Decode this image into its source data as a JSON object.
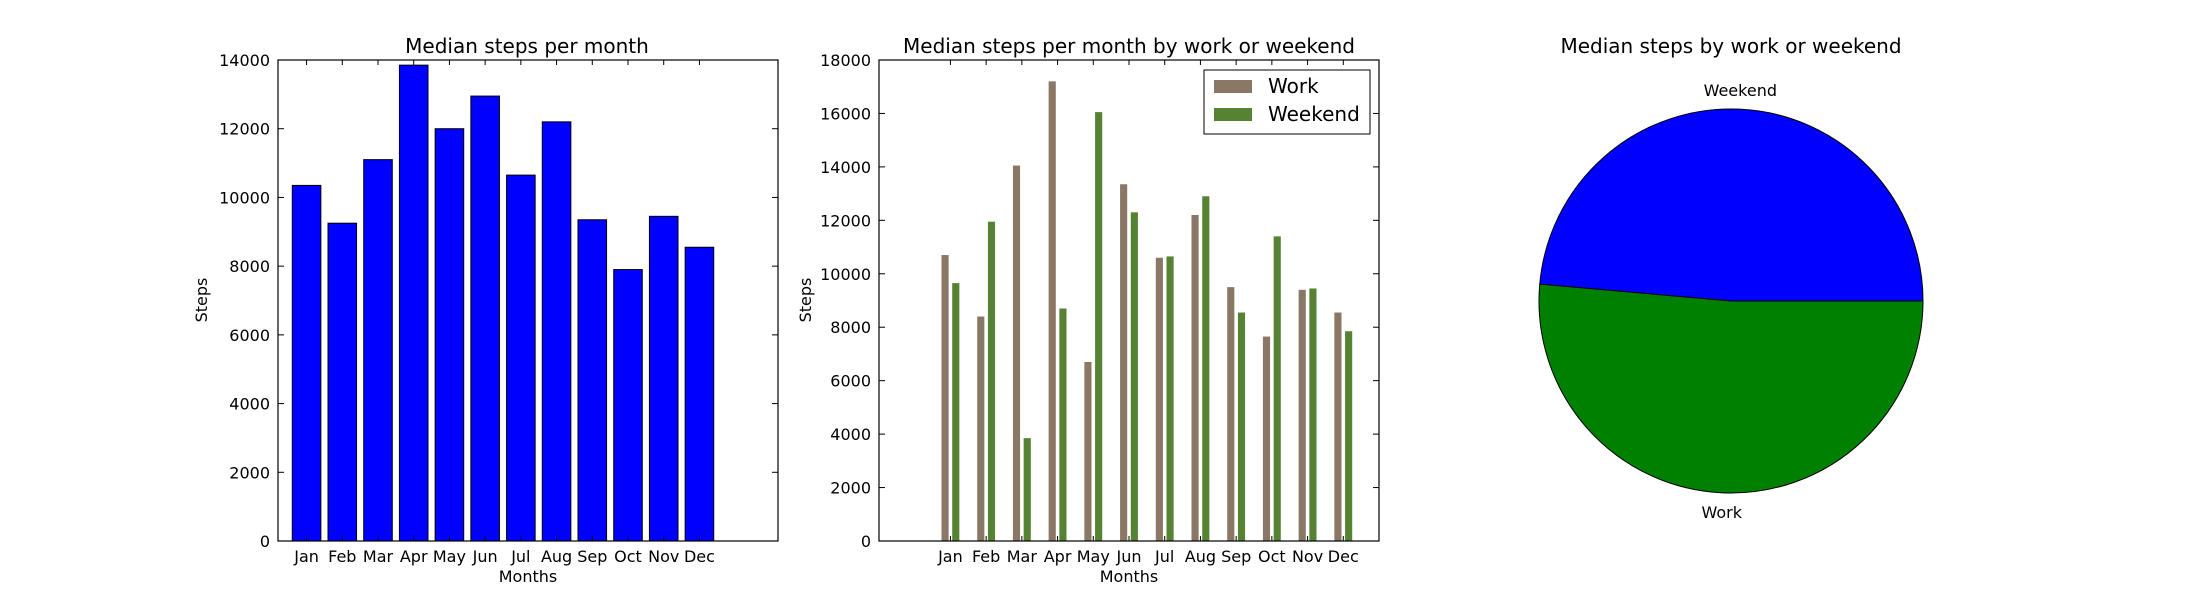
{
  "chart_data": [
    {
      "type": "bar",
      "title": "Median steps per month",
      "xlabel": "Months",
      "ylabel": "Steps",
      "categories": [
        "Jan",
        "Feb",
        "Mar",
        "Apr",
        "May",
        "Jun",
        "Jul",
        "Aug",
        "Sep",
        "Oct",
        "Nov",
        "Dec"
      ],
      "values": [
        10350,
        9250,
        11100,
        13850,
        12000,
        12950,
        10650,
        12200,
        9350,
        7900,
        9450,
        8550
      ],
      "ylim": [
        0,
        14000
      ],
      "yticks": [
        0,
        2000,
        4000,
        6000,
        8000,
        10000,
        12000,
        14000
      ],
      "grid": false,
      "color": "#0000ff"
    },
    {
      "type": "bar",
      "title": "Median steps per month by work or weekend",
      "xlabel": "Months",
      "ylabel": "Steps",
      "categories": [
        "Jan",
        "Feb",
        "Mar",
        "Apr",
        "May",
        "Jun",
        "Jul",
        "Aug",
        "Sep",
        "Oct",
        "Nov",
        "Dec"
      ],
      "series": [
        {
          "name": "Work",
          "color": "#8b7766",
          "values": [
            10700,
            8400,
            14050,
            17200,
            6700,
            13350,
            10600,
            12200,
            9500,
            7650,
            9400,
            8550
          ]
        },
        {
          "name": "Weekend",
          "color": "#568234",
          "values": [
            9650,
            11950,
            3850,
            8700,
            16050,
            12300,
            10650,
            12900,
            8550,
            11400,
            9450,
            7850
          ]
        }
      ],
      "ylim": [
        0,
        18000
      ],
      "yticks": [
        0,
        2000,
        4000,
        6000,
        8000,
        10000,
        12000,
        14000,
        16000,
        18000
      ],
      "grid": false,
      "legend": "top-right"
    },
    {
      "type": "pie",
      "title": "Median steps by work or weekend",
      "slices": [
        {
          "label": "Weekend",
          "value": 48.6,
          "color": "#0000ff"
        },
        {
          "label": "Work",
          "value": 51.4,
          "color": "#008000"
        }
      ]
    }
  ]
}
